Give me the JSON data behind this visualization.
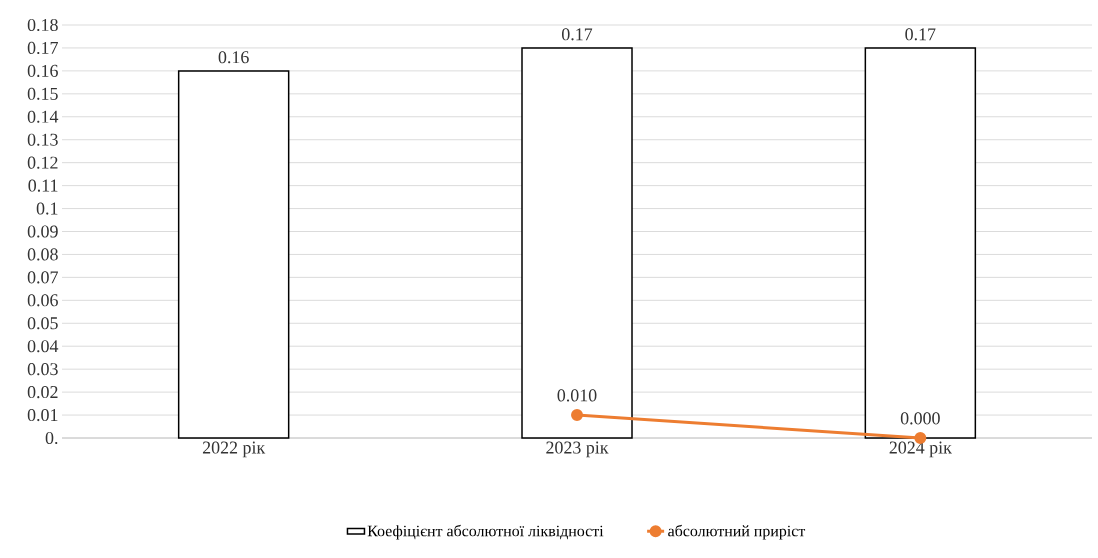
{
  "chart_data": {
    "type": "bar",
    "categories": [
      "2022 рік",
      "2023 рік",
      "2024 рік"
    ],
    "series": [
      {
        "name": "Коефіцієнт абсолютної ліквідності",
        "color": "#ffffff",
        "values": [
          0.16,
          0.17,
          0.17
        ],
        "value_labels": [
          "0.16",
          "0.17",
          "0.17"
        ]
      },
      {
        "name": "абсолютний приріст",
        "type": "line",
        "color": "#ed7d31",
        "marker": "circle",
        "values": [
          null,
          0.01,
          0.0
        ],
        "value_labels": [
          null,
          "0.010",
          "0.000"
        ]
      }
    ],
    "ylim": [
      0,
      0.18
    ],
    "yticks": [
      {
        "value": 0,
        "label": "0."
      },
      0.01,
      0.02,
      0.03,
      0.04,
      0.05,
      0.06,
      0.07,
      0.08,
      0.09,
      0.1,
      0.11,
      0.12,
      0.13,
      0.14,
      0.15,
      0.16,
      0.17,
      0.18
    ],
    "grid": "y",
    "legend": "bottom"
  }
}
